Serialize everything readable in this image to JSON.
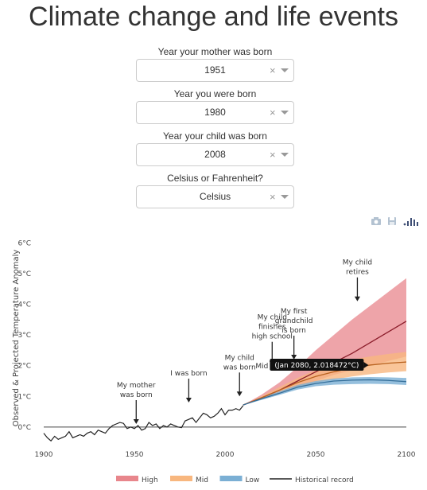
{
  "title": "Climate change and life events",
  "controls": [
    {
      "label": "Year your mother was born",
      "value": "1951"
    },
    {
      "label": "Year you were born",
      "value": "1980"
    },
    {
      "label": "Year your child was born",
      "value": "2008"
    },
    {
      "label": "Celsius or Fahrenheit?",
      "value": "Celsius"
    }
  ],
  "select_icons": {
    "clear": "×",
    "dropdown": "chevron-down-icon"
  },
  "toolbar": {
    "icons": [
      "camera-icon",
      "save-icon",
      "plotly-logo-icon"
    ]
  },
  "tooltip": "(Jan 2080, 2.018472°C)",
  "hover_series_label": "Mid",
  "chart_data": {
    "type": "line",
    "ylabel": "Observed & Projected Temperature Anomaly",
    "xlim": [
      1900,
      2100
    ],
    "ylim": [
      -0.6,
      6.4
    ],
    "x_ticks": [
      1900,
      1950,
      2000,
      2050,
      2100
    ],
    "x_tick_labels": [
      "1900",
      "1950",
      "2000",
      "2050",
      "2100"
    ],
    "y_ticks": [
      0,
      1,
      2,
      3,
      4,
      5,
      6
    ],
    "y_tick_labels": [
      "0°C",
      "1°C",
      "2°C",
      "3°C",
      "4°C",
      "5°C",
      "6°C"
    ],
    "historical": {
      "name": "Historical record",
      "color": "#222222",
      "x": [
        1900,
        1902,
        1904,
        1906,
        1908,
        1910,
        1912,
        1914,
        1916,
        1918,
        1920,
        1922,
        1924,
        1926,
        1928,
        1930,
        1932,
        1934,
        1936,
        1938,
        1940,
        1942,
        1944,
        1946,
        1948,
        1950,
        1952,
        1954,
        1956,
        1958,
        1960,
        1962,
        1964,
        1966,
        1968,
        1970,
        1972,
        1974,
        1976,
        1978,
        1980,
        1982,
        1984,
        1986,
        1988,
        1990,
        1992,
        1994,
        1996,
        1998,
        2000,
        2002,
        2004,
        2006,
        2008,
        2010
      ],
      "y": [
        -0.2,
        -0.35,
        -0.45,
        -0.3,
        -0.4,
        -0.35,
        -0.3,
        -0.15,
        -0.35,
        -0.3,
        -0.25,
        -0.3,
        -0.2,
        -0.15,
        -0.25,
        -0.1,
        -0.15,
        -0.2,
        -0.05,
        0.05,
        0.1,
        0.15,
        0.12,
        -0.05,
        0.0,
        -0.05,
        0.05,
        -0.1,
        -0.05,
        0.15,
        0.05,
        0.1,
        -0.05,
        0.05,
        0.0,
        0.1,
        0.05,
        0.0,
        -0.02,
        0.2,
        0.25,
        0.3,
        0.15,
        0.3,
        0.45,
        0.4,
        0.3,
        0.35,
        0.45,
        0.6,
        0.4,
        0.55,
        0.55,
        0.6,
        0.55,
        0.7
      ]
    },
    "scenarios": {
      "x": [
        2010,
        2020,
        2030,
        2040,
        2050,
        2060,
        2070,
        2080,
        2090,
        2100
      ],
      "high": {
        "name": "High",
        "color": "#e8868c",
        "mid": [
          0.72,
          0.95,
          1.2,
          1.5,
          1.8,
          2.1,
          2.4,
          2.75,
          3.1,
          3.45
        ],
        "lower": [
          0.72,
          0.9,
          1.1,
          1.3,
          1.5,
          1.7,
          1.85,
          2.0,
          2.15,
          2.3
        ],
        "upper": [
          0.72,
          1.05,
          1.45,
          1.95,
          2.5,
          3.0,
          3.5,
          3.95,
          4.4,
          4.85
        ]
      },
      "mid": {
        "name": "Mid",
        "color": "#f8b77f",
        "mid": [
          0.72,
          0.95,
          1.2,
          1.45,
          1.65,
          1.8,
          1.93,
          2.02,
          2.08,
          2.12
        ],
        "lower": [
          0.72,
          0.9,
          1.1,
          1.3,
          1.45,
          1.55,
          1.65,
          1.72,
          1.78,
          1.82
        ],
        "upper": [
          0.72,
          1.0,
          1.3,
          1.6,
          1.85,
          2.05,
          2.2,
          2.3,
          2.38,
          2.45
        ]
      },
      "low": {
        "name": "Low",
        "color": "#7bafd4",
        "mid": [
          0.72,
          0.92,
          1.1,
          1.3,
          1.42,
          1.5,
          1.53,
          1.54,
          1.52,
          1.48
        ],
        "lower": [
          0.72,
          0.88,
          1.05,
          1.22,
          1.33,
          1.38,
          1.4,
          1.41,
          1.4,
          1.37
        ],
        "upper": [
          0.72,
          0.96,
          1.16,
          1.37,
          1.5,
          1.58,
          1.62,
          1.63,
          1.62,
          1.6
        ]
      }
    },
    "annotations": [
      {
        "lines": [
          "My mother",
          "was born"
        ],
        "x": 1951,
        "y": 0.1
      },
      {
        "lines": [
          "I was born"
        ],
        "x": 1980,
        "y": 0.8
      },
      {
        "lines": [
          "My child",
          "was born"
        ],
        "x": 2008,
        "y": 1.0
      },
      {
        "lines": [
          "My child",
          "finishes",
          "high school"
        ],
        "x": 2026,
        "y": 2.0
      },
      {
        "lines": [
          "My first",
          "grandchild",
          "is born"
        ],
        "x": 2038,
        "y": 2.2
      },
      {
        "lines": [
          "My child",
          "retires"
        ],
        "x": 2073,
        "y": 4.1
      }
    ],
    "legend": [
      {
        "name": "High",
        "color": "#e8868c",
        "kind": "band"
      },
      {
        "name": "Mid",
        "color": "#f8b77f",
        "kind": "band"
      },
      {
        "name": "Low",
        "color": "#7bafd4",
        "kind": "band"
      },
      {
        "name": "Historical record",
        "color": "#222222",
        "kind": "line"
      }
    ],
    "legend_position": "bottom"
  }
}
